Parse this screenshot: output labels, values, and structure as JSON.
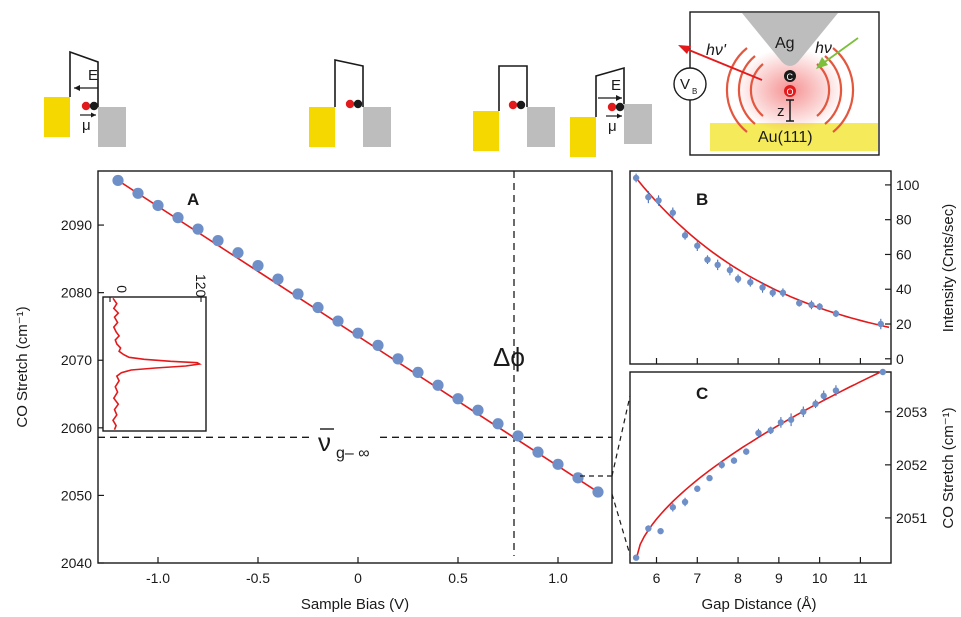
{
  "colors": {
    "fit": "#e31a1c",
    "points": "#6e8fc8",
    "tip_electrode": "#f5d800",
    "sample_electrode": "#bdbdbd",
    "au_surface": "#f4ea5a",
    "ag_tip": "#bdbdbd",
    "emission": "#e4573f",
    "incident": "#7cbf3a"
  },
  "labels": {
    "inset_axis_start": "0",
    "inset_axis_end": "120",
    "delta_phi": "Δϕ",
    "nu_main": "ν",
    "nu_sub": "g– ∞",
    "field": "E",
    "dipole": "μ",
    "ag": "Ag",
    "au": "Au(111)",
    "hv": "hν",
    "hv_prime": "hν'",
    "vb": "V",
    "vb_sub": "B",
    "z": "z",
    "c_atom": "C",
    "o_atom": "O"
  },
  "chart_data": [
    {
      "panel": "A",
      "type": "scatter",
      "xlabel": "Sample Bias (V)",
      "ylabel": "CO Stretch (cm⁻¹)",
      "xlim": [
        -1.3,
        1.27
      ],
      "ylim": [
        2040,
        2098
      ],
      "xticks": [
        "-1.0",
        "-0.5",
        "0",
        "0.5",
        "1.0"
      ],
      "xtick_values": [
        -1.0,
        -0.5,
        0,
        0.5,
        1.0
      ],
      "yticks": [
        "2040",
        "2050",
        "2060",
        "2070",
        "2080",
        "2090"
      ],
      "ytick_values": [
        2040,
        2050,
        2060,
        2070,
        2080,
        2090
      ],
      "x": [
        -1.2,
        -1.1,
        -1.0,
        -0.9,
        -0.8,
        -0.7,
        -0.6,
        -0.5,
        -0.4,
        -0.3,
        -0.2,
        -0.1,
        0.0,
        0.1,
        0.2,
        0.3,
        0.4,
        0.5,
        0.6,
        0.7,
        0.8,
        0.9,
        1.0,
        1.1,
        1.2
      ],
      "y": [
        2096.6,
        2094.7,
        2092.9,
        2091.1,
        2089.4,
        2087.7,
        2085.9,
        2084.0,
        2082.0,
        2079.8,
        2077.8,
        2075.8,
        2074.0,
        2072.2,
        2070.2,
        2068.2,
        2066.3,
        2064.3,
        2062.6,
        2060.6,
        2058.8,
        2056.4,
        2054.6,
        2052.6,
        2050.5
      ],
      "fit": {
        "x0": -1.2,
        "y0": 2096.6,
        "x1": 1.2,
        "y1": 2050.5
      },
      "dashed_vertical_x": 0.78,
      "dashed_horizontal_y": 2058.6
    },
    {
      "panel": "inset",
      "type": "line",
      "xlim": [
        0,
        120
      ],
      "ylim": [
        2060,
        2080
      ],
      "x": [
        4,
        9,
        5,
        11,
        6,
        10,
        5,
        8,
        12,
        7,
        9,
        14,
        12,
        18,
        25,
        45,
        80,
        115,
        118,
        100,
        60,
        28,
        15,
        9,
        12,
        7,
        10,
        5,
        11,
        6,
        9,
        4,
        8,
        6
      ],
      "y": [
        2079.8,
        2079.0,
        2078.3,
        2077.6,
        2077.0,
        2076.2,
        2075.5,
        2074.8,
        2074.2,
        2073.6,
        2073.0,
        2072.4,
        2071.9,
        2071.4,
        2071.0,
        2070.7,
        2070.4,
        2070.2,
        2070.0,
        2069.7,
        2069.4,
        2069.1,
        2068.7,
        2068.2,
        2067.5,
        2066.6,
        2065.8,
        2064.9,
        2064.0,
        2063.2,
        2062.4,
        2061.6,
        2060.8,
        2060.2
      ]
    },
    {
      "panel": "B",
      "type": "scatter",
      "xlabel": "",
      "ylabel": "Intensity (Cnts/sec)",
      "xlim": [
        5.35,
        11.75
      ],
      "ylim": [
        -3,
        108
      ],
      "yticks": [
        "0",
        "20",
        "40",
        "60",
        "80",
        "100"
      ],
      "ytick_values": [
        0,
        20,
        40,
        60,
        80,
        100
      ],
      "x": [
        5.5,
        5.8,
        6.05,
        6.4,
        6.7,
        7.0,
        7.25,
        7.5,
        7.8,
        8.0,
        8.3,
        8.6,
        8.85,
        9.1,
        9.5,
        9.8,
        10.0,
        10.4,
        11.5
      ],
      "y": [
        104,
        93,
        91,
        84,
        71,
        65,
        57,
        54,
        51,
        46,
        44,
        41,
        38,
        38,
        32,
        31,
        30,
        26,
        20
      ],
      "err": [
        2.5,
        3.5,
        3,
        3,
        2.5,
        3,
        2.5,
        3,
        3,
        2.5,
        2.5,
        3,
        2.5,
        2.5,
        2,
        2.5,
        2,
        2,
        3
      ],
      "fit": {
        "type": "exp_decay",
        "a": 104,
        "b": 0.282,
        "x0": 5.5
      }
    },
    {
      "panel": "C",
      "type": "scatter",
      "xlabel": "Gap Distance (Å)",
      "ylabel": "CO Stretch (cm⁻¹)",
      "xlim": [
        5.35,
        11.75
      ],
      "ylim": [
        2050.15,
        2053.75
      ],
      "xticks": [
        "6",
        "7",
        "8",
        "9",
        "10",
        "11"
      ],
      "xtick_values": [
        6,
        7,
        8,
        9,
        10,
        11
      ],
      "yticks": [
        "2051",
        "2052",
        "2053"
      ],
      "ytick_values": [
        2051,
        2052,
        2053
      ],
      "x": [
        5.5,
        5.8,
        6.1,
        6.4,
        6.7,
        7.0,
        7.3,
        7.6,
        7.9,
        8.2,
        8.5,
        8.8,
        9.05,
        9.3,
        9.6,
        9.9,
        10.1,
        10.4,
        11.55
      ],
      "y": [
        2050.25,
        2050.8,
        2050.75,
        2051.2,
        2051.3,
        2051.55,
        2051.75,
        2052.0,
        2052.08,
        2052.25,
        2052.6,
        2052.65,
        2052.8,
        2052.85,
        2053.0,
        2053.15,
        2053.3,
        2053.4,
        2053.75
      ],
      "err": [
        0.05,
        0.06,
        0.05,
        0.08,
        0.08,
        0.06,
        0.05,
        0.07,
        0.06,
        0.06,
        0.08,
        0.07,
        0.1,
        0.12,
        0.1,
        0.08,
        0.1,
        0.1,
        0.05
      ],
      "fit": {
        "type": "power",
        "x0": 5.5,
        "x1": 11.55,
        "y0": 2050.22,
        "y1": 2053.77,
        "p": 0.62
      }
    }
  ]
}
